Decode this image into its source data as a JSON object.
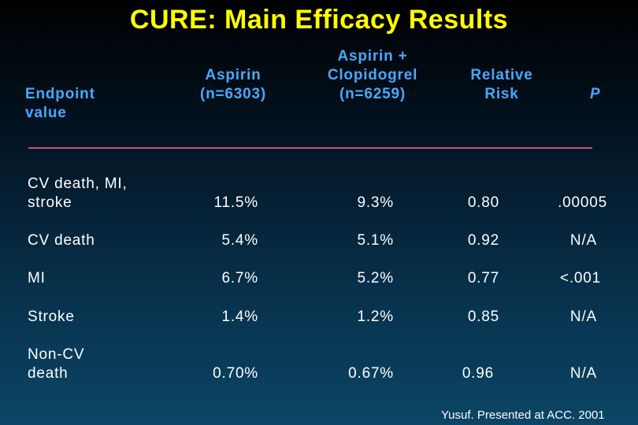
{
  "title": "CURE:  Main Efficacy Results",
  "headers": {
    "endpoint": [
      "Endpoint",
      "value"
    ],
    "aspirin": [
      "Aspirin",
      "(n=6303)"
    ],
    "combo": [
      "Aspirin +",
      "Clopidogrel",
      "(n=6259)"
    ],
    "rr": [
      "Relative",
      "Risk"
    ],
    "p": "P"
  },
  "rows": [
    {
      "label": [
        "CV death, MI,",
        "stroke"
      ],
      "aspirin": "11.5%",
      "combo": "9.3%",
      "rr": "0.80",
      "p": ".00005"
    },
    {
      "label": [
        "CV death"
      ],
      "aspirin": "5.4%",
      "combo": "5.1%",
      "rr": "0.92",
      "p": "N/A"
    },
    {
      "label": [
        "MI"
      ],
      "aspirin": "6.7%",
      "combo": "5.2%",
      "rr": "0.77",
      "p": "<.001"
    },
    {
      "label": [
        "Stroke"
      ],
      "aspirin": "1.4%",
      "combo": "1.2%",
      "rr": "0.85",
      "p": "N/A"
    },
    {
      "label": [
        "Non-CV",
        "death"
      ],
      "aspirin": "0.70%",
      "combo": "0.67%",
      "rr": "0.96",
      "p": "N/A"
    }
  ],
  "footer": "Yusuf. Presented at ACC. 2001",
  "colors": {
    "title": "#ffff00",
    "header": "#4aa8ff",
    "rule": "#c8507a"
  }
}
